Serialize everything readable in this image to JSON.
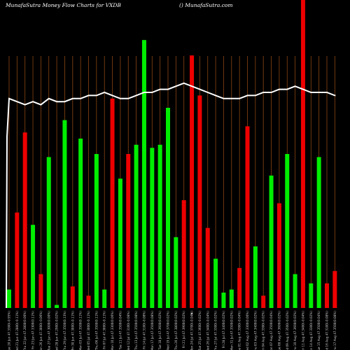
{
  "header": {
    "title": "MunafaSutra  Money Flow  Charts for VXDB",
    "site": "() MunafaSutra.com"
  },
  "colors": {
    "background": "#000000",
    "grid": "#8b4513",
    "up": "#00ee00",
    "down": "#ee0000",
    "line": "#ffffff"
  },
  "chart_data": {
    "type": "bar",
    "title": "MunafaSutra  Money Flow  Charts for VXDB",
    "ylim": [
      0,
      100
    ],
    "categories": [
      "Tue 20 Jun 47.3300(-0.95%)",
      "Wed 21 Jun 47.2800(-0.11%)",
      "Thu 22 Jun 47.2800(0.00%)",
      "Fri 23 Jun 47.3300(0.11%)",
      "Mon 26 Jun 47.3000(-0.06%)",
      "Tue 27 Jun 47.3000(0.00%)",
      "Wed 28 Jun 47.2900(-0.02%)",
      "Thu 29 Jun 47.3500(0.13%)",
      "Fri 30 Jun 47.3000(-0.11%)",
      "Mon 03 Jul 47.3500(0.11%)",
      "Wed 05 Jul 47.3000(-0.11%)",
      "Thu 06 Jul 47.3500(0.11%)",
      "Fri 07 Jul 47.3000(-0.11%)",
      "Mon 10 Jul 47.3300(0.06%)",
      "Tue 11 Jul 47.3500(0.04%)",
      "Wed 12 Jul 47.3100(-0.08%)",
      "Thu 13 Jul 47.3500(0.08%)",
      "Fri 14 Jul 47.3100(-0.08%)",
      "Mon 17 Jul 47.3500(0.08%)",
      "Tue 18 Jul 47.3600(0.02%)",
      "Wed 19 Jul 47.3700(0.02%)",
      "Thu 20 Jul 47.3800(0.02%)",
      "Fri 21 Jul 47.3900(0.02%)",
      "Mon 24 Jul 47.3700(-0.04%)",
      "Tue 25 Jul 47.3600(-0.02%)",
      "Wed 26 Jul 47.3400(-0.04%)",
      "Thu 27 Jul 47.3300(-0.02%)",
      "Fri 28 Jul 47.3400(0.02%)",
      "Mon 31 Jul 47.3500(0.02%)",
      "Tue 01 Aug 47.3300(-0.04%)",
      "Wed 02 Aug 47.3300(0.00%)",
      "Thu 03 Aug 47.3400(0.02%)",
      "Fri 04 Aug 47.3300(-0.02%)",
      "Mon 07 Aug 47.3500(0.04%)",
      "Tue 08 Aug 47.3600(0.02%)",
      "Wed 09 Aug 47.3500(-0.02%)",
      "Thu 10 Aug 47.3600(0.02%)",
      "Fri 11 Aug 47.3400(-0.04%)",
      "Mon 14 Aug 47.3300(-0.02%)",
      "Tue 15 Aug 47.3500(0.04%)",
      "Wed 16 Aug 47.3100(-0.08%)",
      "Thu 17 Aug 47.3500(0.08%)"
    ],
    "values": [
      6,
      31,
      57,
      27,
      11,
      49,
      1,
      61,
      7,
      55,
      4,
      50,
      6,
      68,
      42,
      50,
      53,
      87,
      52,
      53,
      65,
      23,
      35,
      82,
      69,
      26,
      16,
      5,
      6,
      13,
      59,
      20,
      4,
      43,
      34,
      50,
      11,
      100,
      8,
      49,
      8,
      12
    ],
    "directions": [
      "up",
      "down",
      "down",
      "up",
      "down",
      "up",
      "up",
      "up",
      "down",
      "up",
      "down",
      "up",
      "up",
      "down",
      "up",
      "down",
      "up",
      "up",
      "up",
      "up",
      "up",
      "up",
      "down",
      "down",
      "down",
      "down",
      "up",
      "up",
      "up",
      "down",
      "down",
      "up",
      "down",
      "up",
      "down",
      "up",
      "up",
      "down",
      "up",
      "up",
      "down",
      "down"
    ],
    "line": [
      68,
      67,
      66,
      67,
      66,
      68,
      67,
      67,
      68,
      68,
      69,
      69,
      70,
      69,
      68,
      68,
      69,
      70,
      70,
      71,
      71,
      72,
      73,
      72,
      71,
      70,
      69,
      68,
      68,
      68,
      69,
      69,
      70,
      70,
      71,
      71,
      72,
      71,
      70,
      70,
      70,
      69
    ],
    "dot_marker_index": 23,
    "grid": true,
    "legend": "none"
  }
}
